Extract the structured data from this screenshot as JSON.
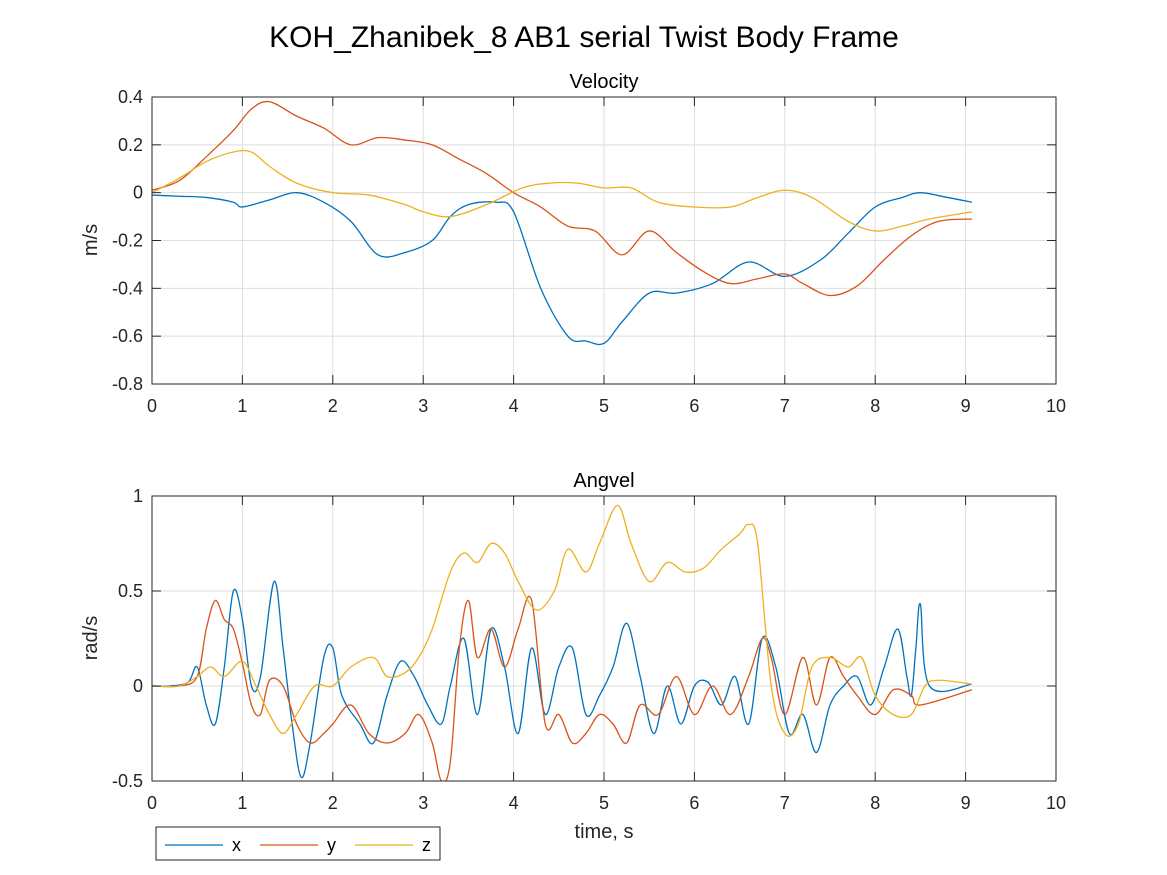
{
  "figure": {
    "title": "KOH_Zhanibek_8 AB1 serial Twist Body Frame"
  },
  "legend": {
    "entries": [
      {
        "label": "x",
        "color": "#0072BD"
      },
      {
        "label": "y",
        "color": "#D95319"
      },
      {
        "label": "z",
        "color": "#EDB120"
      }
    ],
    "placement": "bottom-left, below axes"
  },
  "chart_data": [
    {
      "type": "line",
      "title": "Velocity",
      "xlabel": "",
      "ylabel": "m/s",
      "xlim": [
        0,
        10
      ],
      "ylim": [
        -0.8,
        0.4
      ],
      "xticks": [
        0,
        1,
        2,
        3,
        4,
        5,
        6,
        7,
        8,
        9,
        10
      ],
      "xticklabels": [
        "0",
        "1",
        "2",
        "3",
        "4",
        "5",
        "6",
        "7",
        "8",
        "9",
        "10"
      ],
      "yticks": [
        -0.8,
        -0.6,
        -0.4,
        -0.2,
        0,
        0.2,
        0.4
      ],
      "yticklabels": [
        "-0.8",
        "-0.6",
        "-0.4",
        "-0.2",
        "0",
        "0.2",
        "0.4"
      ],
      "grid": true,
      "series": [
        {
          "name": "x",
          "color": "#0072BD",
          "x": [
            0,
            0.3,
            0.6,
            0.9,
            1.0,
            1.3,
            1.6,
            1.9,
            2.2,
            2.5,
            2.8,
            3.1,
            3.3,
            3.5,
            3.8,
            4.0,
            4.3,
            4.6,
            4.8,
            5.0,
            5.2,
            5.5,
            5.8,
            6.2,
            6.6,
            7.0,
            7.4,
            7.7,
            8.0,
            8.3,
            8.5,
            8.8,
            9.07
          ],
          "y": [
            -0.01,
            -0.015,
            -0.02,
            -0.04,
            -0.06,
            -0.03,
            0.0,
            -0.04,
            -0.12,
            -0.26,
            -0.25,
            -0.2,
            -0.1,
            -0.05,
            -0.04,
            -0.08,
            -0.4,
            -0.6,
            -0.62,
            -0.63,
            -0.54,
            -0.42,
            -0.42,
            -0.38,
            -0.29,
            -0.35,
            -0.28,
            -0.17,
            -0.06,
            -0.02,
            0.0,
            -0.02,
            -0.04
          ]
        },
        {
          "name": "y",
          "color": "#D95319",
          "x": [
            0,
            0.3,
            0.6,
            0.9,
            1.1,
            1.3,
            1.6,
            1.9,
            2.2,
            2.5,
            2.8,
            3.1,
            3.4,
            3.7,
            4.0,
            4.3,
            4.6,
            4.9,
            5.2,
            5.5,
            5.8,
            6.1,
            6.4,
            6.7,
            7.0,
            7.2,
            7.5,
            7.8,
            8.1,
            8.4,
            8.7,
            9.07
          ],
          "y": [
            0.01,
            0.05,
            0.15,
            0.26,
            0.35,
            0.38,
            0.32,
            0.27,
            0.2,
            0.23,
            0.22,
            0.2,
            0.14,
            0.08,
            0.0,
            -0.06,
            -0.14,
            -0.16,
            -0.26,
            -0.16,
            -0.25,
            -0.33,
            -0.38,
            -0.36,
            -0.34,
            -0.38,
            -0.43,
            -0.39,
            -0.28,
            -0.18,
            -0.12,
            -0.11
          ]
        },
        {
          "name": "z",
          "color": "#EDB120",
          "x": [
            0,
            0.3,
            0.6,
            0.9,
            1.1,
            1.3,
            1.6,
            2.0,
            2.4,
            2.8,
            3.0,
            3.3,
            3.7,
            4.1,
            4.4,
            4.7,
            5.0,
            5.3,
            5.6,
            6.0,
            6.4,
            6.7,
            7.0,
            7.3,
            7.7,
            8.0,
            8.3,
            8.6,
            9.07
          ],
          "y": [
            0.0,
            0.06,
            0.13,
            0.17,
            0.17,
            0.11,
            0.04,
            0.0,
            -0.01,
            -0.05,
            -0.08,
            -0.1,
            -0.05,
            0.02,
            0.04,
            0.04,
            0.02,
            0.02,
            -0.04,
            -0.06,
            -0.06,
            -0.02,
            0.01,
            -0.02,
            -0.12,
            -0.16,
            -0.14,
            -0.11,
            -0.08
          ]
        }
      ]
    },
    {
      "type": "line",
      "title": "Angvel",
      "xlabel": "time, s",
      "ylabel": "rad/s",
      "xlim": [
        0,
        10
      ],
      "ylim": [
        -0.5,
        1
      ],
      "xticks": [
        0,
        1,
        2,
        3,
        4,
        5,
        6,
        7,
        8,
        9,
        10
      ],
      "xticklabels": [
        "0",
        "1",
        "2",
        "3",
        "4",
        "5",
        "6",
        "7",
        "8",
        "9",
        "10"
      ],
      "yticks": [
        -0.5,
        0,
        0.5,
        1
      ],
      "yticklabels": [
        "-0.5",
        "0",
        "0.5",
        "1"
      ],
      "grid": true,
      "series": [
        {
          "name": "x",
          "color": "#0072BD",
          "x": [
            0,
            0.2,
            0.4,
            0.5,
            0.6,
            0.7,
            0.8,
            0.9,
            1.0,
            1.1,
            1.2,
            1.35,
            1.45,
            1.55,
            1.65,
            1.75,
            1.9,
            2.0,
            2.1,
            2.3,
            2.45,
            2.6,
            2.75,
            2.9,
            3.05,
            3.2,
            3.3,
            3.45,
            3.6,
            3.75,
            3.9,
            4.05,
            4.2,
            4.35,
            4.5,
            4.65,
            4.8,
            4.95,
            5.1,
            5.25,
            5.4,
            5.55,
            5.7,
            5.85,
            6.0,
            6.15,
            6.3,
            6.45,
            6.6,
            6.75,
            6.9,
            7.05,
            7.2,
            7.35,
            7.5,
            7.65,
            7.8,
            7.95,
            8.1,
            8.25,
            8.35,
            8.4,
            8.45,
            8.5,
            8.6,
            9.07
          ],
          "y": [
            0.0,
            0.0,
            0.02,
            0.1,
            -0.1,
            -0.2,
            0.1,
            0.5,
            0.35,
            0.0,
            0.05,
            0.55,
            0.2,
            -0.2,
            -0.48,
            -0.3,
            0.15,
            0.2,
            -0.05,
            -0.2,
            -0.3,
            -0.05,
            0.13,
            0.05,
            -0.1,
            -0.2,
            0.0,
            0.25,
            -0.15,
            0.3,
            0.1,
            -0.25,
            0.2,
            -0.15,
            0.1,
            0.2,
            -0.15,
            -0.05,
            0.1,
            0.33,
            0.05,
            -0.25,
            0.0,
            -0.2,
            0.0,
            0.02,
            -0.1,
            0.05,
            -0.2,
            0.25,
            0.1,
            -0.25,
            -0.15,
            -0.35,
            -0.1,
            0.0,
            0.05,
            -0.1,
            0.1,
            0.3,
            0.05,
            -0.05,
            0.2,
            0.43,
            0.0,
            0.01
          ]
        },
        {
          "name": "y",
          "color": "#D95319",
          "x": [
            0,
            0.3,
            0.5,
            0.6,
            0.7,
            0.8,
            0.9,
            1.0,
            1.1,
            1.2,
            1.3,
            1.45,
            1.6,
            1.75,
            1.9,
            2.0,
            2.2,
            2.4,
            2.6,
            2.8,
            2.95,
            3.1,
            3.2,
            3.3,
            3.4,
            3.5,
            3.6,
            3.75,
            3.9,
            4.05,
            4.2,
            4.35,
            4.5,
            4.65,
            4.8,
            4.95,
            5.1,
            5.25,
            5.4,
            5.6,
            5.8,
            6.0,
            6.2,
            6.4,
            6.6,
            6.75,
            6.85,
            7.0,
            7.2,
            7.35,
            7.5,
            7.65,
            7.8,
            8.0,
            8.2,
            8.4,
            8.5,
            9.07
          ],
          "y": [
            0.0,
            0.0,
            0.05,
            0.3,
            0.45,
            0.35,
            0.3,
            0.12,
            -0.1,
            -0.15,
            0.03,
            0.0,
            -0.2,
            -0.3,
            -0.25,
            -0.2,
            -0.1,
            -0.25,
            -0.3,
            -0.25,
            -0.15,
            -0.3,
            -0.5,
            -0.4,
            0.2,
            0.45,
            0.15,
            0.3,
            0.1,
            0.3,
            0.45,
            -0.2,
            -0.15,
            -0.3,
            -0.25,
            -0.15,
            -0.2,
            -0.3,
            -0.1,
            -0.15,
            0.05,
            -0.15,
            0.0,
            -0.15,
            0.05,
            0.25,
            0.15,
            -0.15,
            0.15,
            -0.1,
            0.15,
            0.05,
            -0.05,
            -0.15,
            -0.02,
            -0.05,
            -0.1,
            -0.02
          ]
        },
        {
          "name": "z",
          "color": "#EDB120",
          "x": [
            0,
            0.3,
            0.5,
            0.65,
            0.8,
            1.0,
            1.15,
            1.3,
            1.45,
            1.6,
            1.8,
            2.0,
            2.2,
            2.45,
            2.6,
            2.8,
            2.95,
            3.1,
            3.3,
            3.45,
            3.6,
            3.75,
            3.9,
            4.05,
            4.25,
            4.45,
            4.6,
            4.8,
            4.95,
            5.15,
            5.3,
            5.5,
            5.7,
            5.9,
            6.1,
            6.3,
            6.5,
            6.6,
            6.7,
            6.85,
            7.0,
            7.15,
            7.3,
            7.5,
            7.7,
            7.85,
            8.0,
            8.2,
            8.4,
            8.55,
            8.7,
            9.07
          ],
          "y": [
            0.0,
            0.0,
            0.05,
            0.1,
            0.05,
            0.13,
            0.0,
            -0.15,
            -0.25,
            -0.15,
            0.0,
            0.0,
            0.1,
            0.15,
            0.05,
            0.07,
            0.15,
            0.3,
            0.6,
            0.7,
            0.65,
            0.75,
            0.7,
            0.55,
            0.4,
            0.5,
            0.72,
            0.6,
            0.75,
            0.95,
            0.75,
            0.55,
            0.65,
            0.6,
            0.62,
            0.72,
            0.8,
            0.85,
            0.75,
            0.0,
            -0.25,
            -0.2,
            0.1,
            0.15,
            0.1,
            0.15,
            -0.05,
            -0.15,
            -0.15,
            0.0,
            0.03,
            0.01
          ]
        }
      ]
    }
  ]
}
